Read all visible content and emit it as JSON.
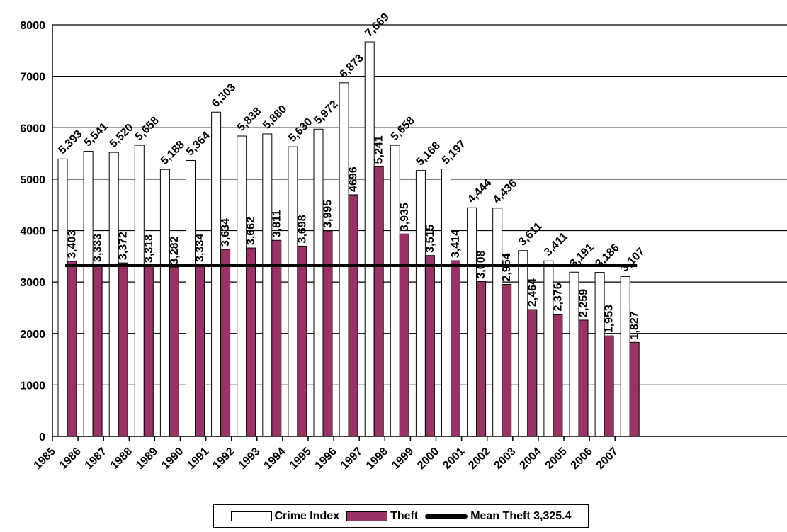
{
  "chart_data": {
    "type": "bar",
    "categories": [
      "1985",
      "1986",
      "1987",
      "1988",
      "1989",
      "1990",
      "1991",
      "1992",
      "1993",
      "1994",
      "1995",
      "1996",
      "1997",
      "1998",
      "1999",
      "2000",
      "2001",
      "2002",
      "2003",
      "2004",
      "2005",
      "2006",
      "2007"
    ],
    "series": [
      {
        "name": "Crime Index",
        "color": "#ffffff",
        "values": [
          5393,
          5541,
          5520,
          5658,
          5188,
          5364,
          6303,
          5838,
          5880,
          5630,
          5972,
          6873,
          7669,
          5658,
          5168,
          5197,
          4444,
          4436,
          3611,
          3411,
          3191,
          3186,
          3107
        ],
        "labels": [
          "5,393",
          "5,541",
          "5,520",
          "5,658",
          "5,188",
          "5,364",
          "6,303",
          "5,838",
          "5,880",
          "5,630",
          "5,972",
          "6,873",
          "7,669",
          "5,658",
          "5,168",
          "5,197",
          "4,444",
          "4,436",
          "3,611",
          "3,411",
          "3,191",
          "3,186",
          "3,107"
        ]
      },
      {
        "name": "Theft",
        "color": "#993366",
        "values": [
          3403,
          3333,
          3372,
          3318,
          3282,
          3334,
          3634,
          3662,
          3811,
          3698,
          3995,
          4696,
          5241,
          3935,
          3515,
          3414,
          3008,
          2954,
          2464,
          2376,
          2259,
          1953,
          1827
        ],
        "labels": [
          "3,403",
          "3,333",
          "3,372",
          "3,318",
          "3,282",
          "3,334",
          "3,634",
          "3,662",
          "3,811",
          "3,698",
          "3,995",
          "4696",
          "5,241",
          "3,935",
          "3,515",
          "3,414",
          "3,008",
          "2,954",
          "2,464",
          "2,376",
          "2,259",
          "1,953",
          "1,827"
        ]
      }
    ],
    "mean_line": {
      "name": "Mean Theft 3,325.4",
      "value": 3325.4,
      "color": "#000000"
    },
    "ylim": [
      0,
      8000
    ],
    "yticks": [
      0,
      1000,
      2000,
      3000,
      4000,
      5000,
      6000,
      7000,
      8000
    ],
    "grid": true,
    "legend_position": "bottom",
    "title": "",
    "xlabel": "",
    "ylabel": ""
  }
}
